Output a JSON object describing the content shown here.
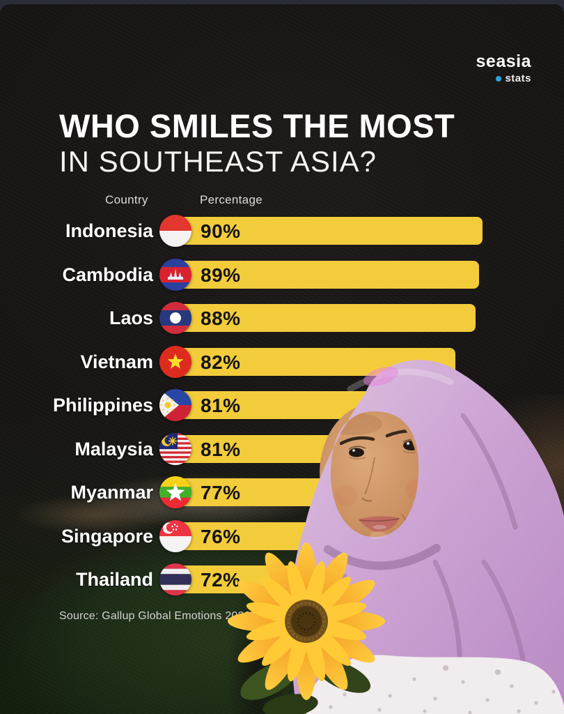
{
  "logo": {
    "brand": "seasia",
    "sub": "stats",
    "dot_color": "#2BA3DC"
  },
  "title": {
    "line1": "WHO SMILES THE MOST",
    "line2": "IN SOUTHEAST ASIA?"
  },
  "columns": {
    "country": "Country",
    "percentage": "Percentage"
  },
  "source": "Source: Gallup Global Emotions 2022",
  "colors": {
    "bar_yellow": "#F3CC3C",
    "background": "#161312",
    "accent_blue": "#2BA3DC",
    "value_text": "#141414"
  },
  "chart_data": {
    "type": "bar",
    "orientation": "horizontal",
    "title": "Who smiles the most in Southeast Asia?",
    "xlabel": "Percentage",
    "ylabel": "Country",
    "xlim": [
      0,
      100
    ],
    "unit": "%",
    "grid": false,
    "legend": "none",
    "categories": [
      "Indonesia",
      "Cambodia",
      "Laos",
      "Vietnam",
      "Philippines",
      "Malaysia",
      "Myanmar",
      "Singapore",
      "Thailand"
    ],
    "values": [
      90,
      89,
      88,
      82,
      81,
      81,
      77,
      76,
      72
    ],
    "rows": [
      {
        "country": "Indonesia",
        "value": 90,
        "label": "90%",
        "flag": "indonesia-flag-icon"
      },
      {
        "country": "Cambodia",
        "value": 89,
        "label": "89%",
        "flag": "cambodia-flag-icon"
      },
      {
        "country": "Laos",
        "value": 88,
        "label": "88%",
        "flag": "laos-flag-icon"
      },
      {
        "country": "Vietnam",
        "value": 82,
        "label": "82%",
        "flag": "vietnam-flag-icon"
      },
      {
        "country": "Philippines",
        "value": 81,
        "label": "81%",
        "flag": "philippines-flag-icon"
      },
      {
        "country": "Malaysia",
        "value": 81,
        "label": "81%",
        "flag": "malaysia-flag-icon"
      },
      {
        "country": "Myanmar",
        "value": 77,
        "label": "77%",
        "flag": "myanmar-flag-icon"
      },
      {
        "country": "Singapore",
        "value": 76,
        "label": "76%",
        "flag": "singapore-flag-icon"
      },
      {
        "country": "Thailand",
        "value": 72,
        "label": "72%",
        "flag": "thailand-flag-icon"
      }
    ]
  }
}
